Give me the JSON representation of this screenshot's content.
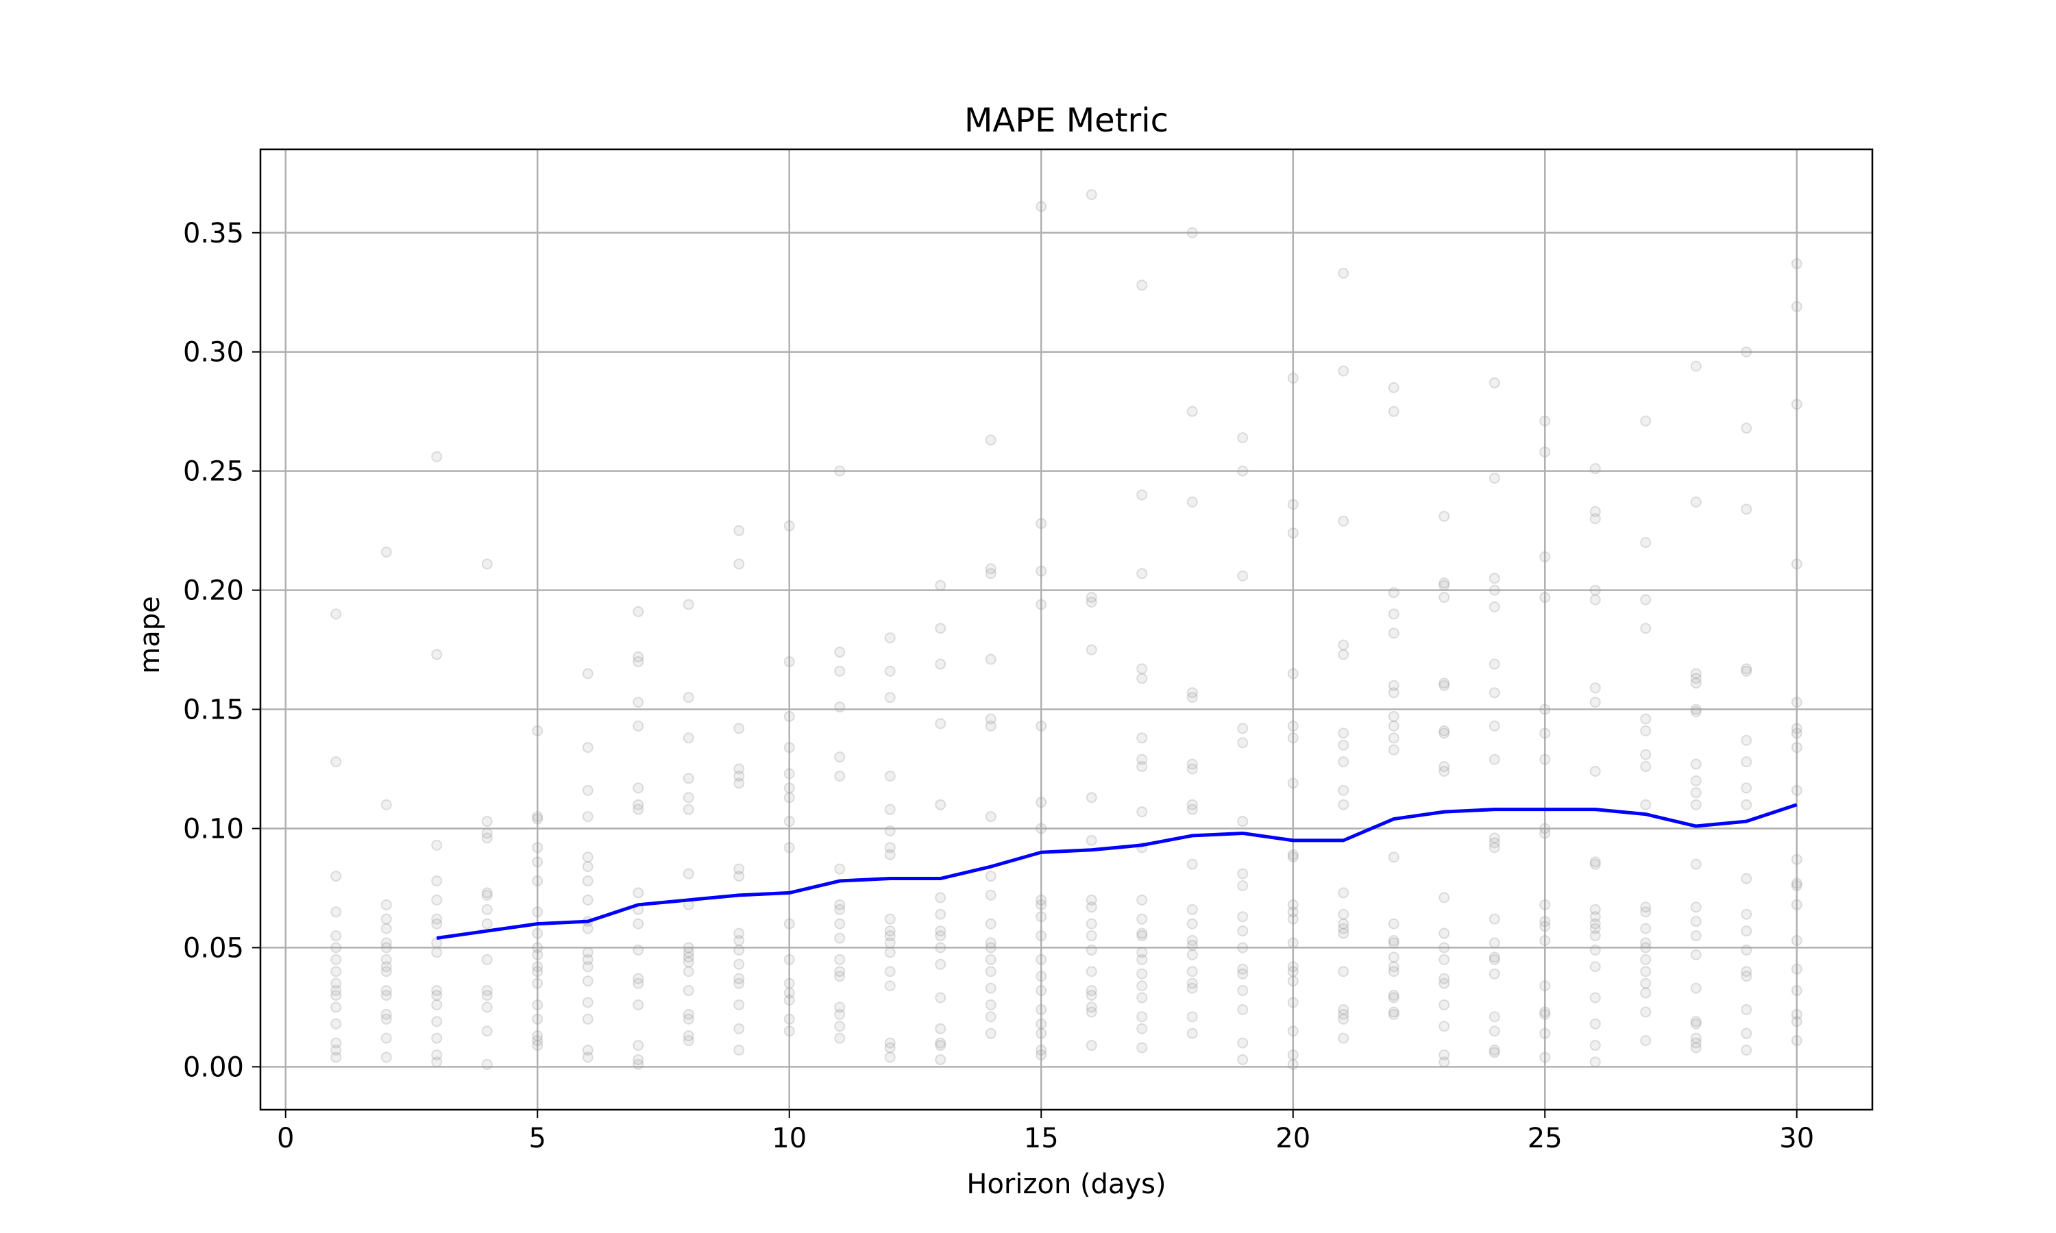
{
  "chart_data": {
    "type": "line",
    "title": "MAPE Metric",
    "xlabel": "Horizon (days)",
    "ylabel": "mape",
    "xlim": [
      -0.5,
      31.5
    ],
    "ylim": [
      -0.018,
      0.385
    ],
    "xticks": [
      0,
      5,
      10,
      15,
      20,
      25,
      30
    ],
    "xtick_labels": [
      "0",
      "5",
      "10",
      "15",
      "20",
      "25",
      "30"
    ],
    "yticks": [
      0.0,
      0.05,
      0.1,
      0.15,
      0.2,
      0.25,
      0.3,
      0.35
    ],
    "ytick_labels": [
      "0.00",
      "0.05",
      "0.10",
      "0.15",
      "0.20",
      "0.25",
      "0.30",
      "0.35"
    ],
    "grid": true,
    "colors": {
      "line": "#0000ff",
      "points": "#999999",
      "grid": "#b0b0b0",
      "frame": "#000000"
    },
    "series": [
      {
        "values_x": [
          3,
          4,
          5,
          6,
          7,
          8,
          9,
          10,
          11,
          12,
          13,
          14,
          15,
          16,
          17,
          18,
          19,
          20,
          21,
          22,
          23,
          24,
          25,
          26,
          27,
          28,
          29,
          30
        ],
        "values_y": [
          0.054,
          0.057,
          0.06,
          0.061,
          0.068,
          0.07,
          0.072,
          0.073,
          0.078,
          0.079,
          0.079,
          0.084,
          0.09,
          0.091,
          0.093,
          0.097,
          0.098,
          0.095,
          0.095,
          0.104,
          0.107,
          0.108,
          0.108,
          0.108,
          0.106,
          0.101,
          0.103,
          0.11
        ]
      }
    ],
    "scatter": [
      {
        "x": 1,
        "y": [
          0.19,
          0.128,
          0.08,
          0.065,
          0.055,
          0.05,
          0.045,
          0.04,
          0.035,
          0.032,
          0.03,
          0.025,
          0.018,
          0.01,
          0.007,
          0.004
        ]
      },
      {
        "x": 2,
        "y": [
          0.216,
          0.11,
          0.068,
          0.062,
          0.058,
          0.052,
          0.05,
          0.045,
          0.042,
          0.04,
          0.032,
          0.03,
          0.022,
          0.02,
          0.012,
          0.004
        ]
      },
      {
        "x": 3,
        "y": [
          0.256,
          0.173,
          0.093,
          0.078,
          0.07,
          0.062,
          0.06,
          0.052,
          0.048,
          0.032,
          0.03,
          0.026,
          0.019,
          0.012,
          0.005,
          0.002
        ]
      },
      {
        "x": 4,
        "y": [
          0.211,
          0.103,
          0.098,
          0.096,
          0.073,
          0.072,
          0.066,
          0.06,
          0.045,
          0.032,
          0.03,
          0.025,
          0.015,
          0.001
        ]
      },
      {
        "x": 5,
        "y": [
          0.141,
          0.105,
          0.104,
          0.092,
          0.086,
          0.078,
          0.065,
          0.056,
          0.05,
          0.047,
          0.042,
          0.04,
          0.035,
          0.026,
          0.02,
          0.013,
          0.011,
          0.009
        ]
      },
      {
        "x": 6,
        "y": [
          0.165,
          0.134,
          0.116,
          0.105,
          0.088,
          0.084,
          0.078,
          0.07,
          0.061,
          0.058,
          0.048,
          0.045,
          0.042,
          0.036,
          0.027,
          0.02,
          0.007,
          0.004
        ]
      },
      {
        "x": 7,
        "y": [
          0.191,
          0.172,
          0.17,
          0.153,
          0.143,
          0.117,
          0.11,
          0.108,
          0.073,
          0.066,
          0.06,
          0.049,
          0.037,
          0.035,
          0.026,
          0.009,
          0.003,
          0.001
        ]
      },
      {
        "x": 8,
        "y": [
          0.194,
          0.155,
          0.138,
          0.121,
          0.113,
          0.108,
          0.081,
          0.068,
          0.05,
          0.048,
          0.046,
          0.044,
          0.04,
          0.032,
          0.022,
          0.02,
          0.013,
          0.011
        ]
      },
      {
        "x": 9,
        "y": [
          0.225,
          0.211,
          0.142,
          0.125,
          0.122,
          0.119,
          0.083,
          0.08,
          0.056,
          0.053,
          0.049,
          0.043,
          0.037,
          0.035,
          0.026,
          0.016,
          0.007
        ]
      },
      {
        "x": 10,
        "y": [
          0.227,
          0.17,
          0.147,
          0.134,
          0.123,
          0.117,
          0.113,
          0.103,
          0.092,
          0.06,
          0.045,
          0.035,
          0.031,
          0.028,
          0.02,
          0.015
        ]
      },
      {
        "x": 11,
        "y": [
          0.25,
          0.174,
          0.166,
          0.151,
          0.13,
          0.122,
          0.083,
          0.068,
          0.066,
          0.06,
          0.054,
          0.045,
          0.04,
          0.038,
          0.025,
          0.022,
          0.017,
          0.012
        ]
      },
      {
        "x": 12,
        "y": [
          0.18,
          0.166,
          0.155,
          0.122,
          0.108,
          0.099,
          0.092,
          0.089,
          0.062,
          0.057,
          0.055,
          0.052,
          0.048,
          0.04,
          0.034,
          0.01,
          0.008,
          0.004
        ]
      },
      {
        "x": 13,
        "y": [
          0.202,
          0.184,
          0.169,
          0.144,
          0.11,
          0.071,
          0.064,
          0.057,
          0.055,
          0.05,
          0.043,
          0.029,
          0.016,
          0.01,
          0.009,
          0.003
        ]
      },
      {
        "x": 14,
        "y": [
          0.263,
          0.209,
          0.207,
          0.171,
          0.146,
          0.143,
          0.105,
          0.08,
          0.072,
          0.06,
          0.052,
          0.05,
          0.045,
          0.04,
          0.033,
          0.026,
          0.021,
          0.014
        ]
      },
      {
        "x": 15,
        "y": [
          0.361,
          0.228,
          0.208,
          0.194,
          0.143,
          0.111,
          0.1,
          0.07,
          0.068,
          0.063,
          0.055,
          0.045,
          0.038,
          0.032,
          0.024,
          0.018,
          0.014,
          0.007,
          0.005
        ]
      },
      {
        "x": 16,
        "y": [
          0.366,
          0.197,
          0.195,
          0.175,
          0.113,
          0.095,
          0.07,
          0.067,
          0.06,
          0.055,
          0.049,
          0.04,
          0.032,
          0.03,
          0.025,
          0.023,
          0.009
        ]
      },
      {
        "x": 17,
        "y": [
          0.328,
          0.24,
          0.207,
          0.167,
          0.163,
          0.138,
          0.129,
          0.126,
          0.107,
          0.092,
          0.07,
          0.062,
          0.056,
          0.055,
          0.048,
          0.045,
          0.039,
          0.034,
          0.029,
          0.021,
          0.016,
          0.008
        ]
      },
      {
        "x": 18,
        "y": [
          0.35,
          0.275,
          0.237,
          0.157,
          0.155,
          0.127,
          0.125,
          0.11,
          0.108,
          0.085,
          0.066,
          0.06,
          0.053,
          0.051,
          0.047,
          0.04,
          0.035,
          0.033,
          0.021,
          0.014
        ]
      },
      {
        "x": 19,
        "y": [
          0.264,
          0.25,
          0.206,
          0.142,
          0.136,
          0.103,
          0.081,
          0.076,
          0.063,
          0.057,
          0.05,
          0.041,
          0.039,
          0.032,
          0.024,
          0.01,
          0.003
        ]
      },
      {
        "x": 20,
        "y": [
          0.289,
          0.236,
          0.224,
          0.165,
          0.143,
          0.138,
          0.119,
          0.089,
          0.088,
          0.068,
          0.065,
          0.062,
          0.052,
          0.042,
          0.04,
          0.036,
          0.027,
          0.015,
          0.005,
          0.001
        ]
      },
      {
        "x": 21,
        "y": [
          0.333,
          0.292,
          0.229,
          0.177,
          0.173,
          0.14,
          0.135,
          0.128,
          0.116,
          0.11,
          0.073,
          0.064,
          0.06,
          0.058,
          0.056,
          0.04,
          0.024,
          0.022,
          0.02,
          0.012
        ]
      },
      {
        "x": 22,
        "y": [
          0.285,
          0.275,
          0.199,
          0.19,
          0.182,
          0.16,
          0.157,
          0.147,
          0.143,
          0.138,
          0.133,
          0.088,
          0.06,
          0.053,
          0.052,
          0.046,
          0.042,
          0.04,
          0.03,
          0.029,
          0.023,
          0.022
        ]
      },
      {
        "x": 23,
        "y": [
          0.231,
          0.203,
          0.202,
          0.197,
          0.161,
          0.16,
          0.141,
          0.14,
          0.126,
          0.124,
          0.071,
          0.056,
          0.05,
          0.045,
          0.037,
          0.035,
          0.026,
          0.017,
          0.005,
          0.002
        ]
      },
      {
        "x": 24,
        "y": [
          0.287,
          0.247,
          0.205,
          0.2,
          0.193,
          0.169,
          0.157,
          0.143,
          0.129,
          0.096,
          0.094,
          0.092,
          0.062,
          0.052,
          0.046,
          0.045,
          0.039,
          0.021,
          0.015,
          0.007,
          0.006
        ]
      },
      {
        "x": 25,
        "y": [
          0.271,
          0.258,
          0.214,
          0.197,
          0.15,
          0.14,
          0.129,
          0.1,
          0.098,
          0.068,
          0.061,
          0.059,
          0.053,
          0.034,
          0.023,
          0.022,
          0.014,
          0.004
        ]
      },
      {
        "x": 26,
        "y": [
          0.251,
          0.233,
          0.23,
          0.2,
          0.196,
          0.159,
          0.153,
          0.124,
          0.086,
          0.085,
          0.066,
          0.063,
          0.06,
          0.058,
          0.055,
          0.049,
          0.042,
          0.029,
          0.018,
          0.009,
          0.002
        ]
      },
      {
        "x": 27,
        "y": [
          0.271,
          0.22,
          0.196,
          0.184,
          0.146,
          0.141,
          0.131,
          0.126,
          0.11,
          0.067,
          0.065,
          0.058,
          0.052,
          0.05,
          0.045,
          0.04,
          0.035,
          0.031,
          0.023,
          0.011
        ]
      },
      {
        "x": 28,
        "y": [
          0.294,
          0.237,
          0.165,
          0.163,
          0.161,
          0.15,
          0.149,
          0.127,
          0.12,
          0.115,
          0.11,
          0.085,
          0.067,
          0.061,
          0.055,
          0.047,
          0.033,
          0.019,
          0.018,
          0.012,
          0.01,
          0.008
        ]
      },
      {
        "x": 29,
        "y": [
          0.3,
          0.268,
          0.234,
          0.167,
          0.166,
          0.137,
          0.128,
          0.117,
          0.11,
          0.079,
          0.064,
          0.057,
          0.049,
          0.04,
          0.038,
          0.024,
          0.014,
          0.007
        ]
      },
      {
        "x": 30,
        "y": [
          0.337,
          0.319,
          0.278,
          0.211,
          0.153,
          0.142,
          0.14,
          0.134,
          0.116,
          0.087,
          0.077,
          0.076,
          0.068,
          0.053,
          0.041,
          0.032,
          0.022,
          0.019,
          0.011
        ]
      }
    ]
  }
}
